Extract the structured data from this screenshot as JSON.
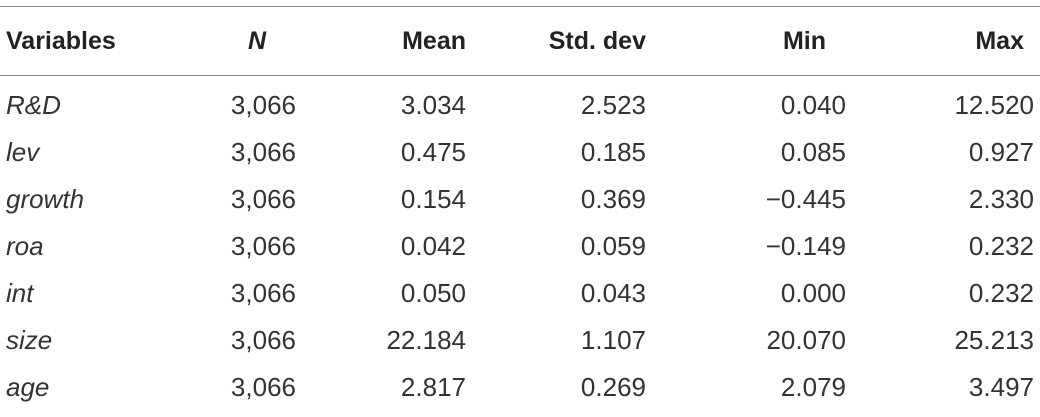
{
  "table": {
    "headers": [
      "Variables",
      "N",
      "Mean",
      "Std. dev",
      "Min",
      "Max"
    ],
    "rows": [
      {
        "variable": "R&D",
        "n": "3,066",
        "mean": "3.034",
        "sd": "2.523",
        "min": "0.040",
        "max": "12.520"
      },
      {
        "variable": "lev",
        "n": "3,066",
        "mean": "0.475",
        "sd": "0.185",
        "min": "0.085",
        "max": "0.927"
      },
      {
        "variable": "growth",
        "n": "3,066",
        "mean": "0.154",
        "sd": "0.369",
        "min": "−0.445",
        "max": "2.330"
      },
      {
        "variable": "roa",
        "n": "3,066",
        "mean": "0.042",
        "sd": "0.059",
        "min": "−0.149",
        "max": "0.232"
      },
      {
        "variable": "int",
        "n": "3,066",
        "mean": "0.050",
        "sd": "0.043",
        "min": "0.000",
        "max": "0.232"
      },
      {
        "variable": "size",
        "n": "3,066",
        "mean": "22.184",
        "sd": "1.107",
        "min": "20.070",
        "max": "25.213"
      },
      {
        "variable": "age",
        "n": "3,066",
        "mean": "2.817",
        "sd": "0.269",
        "min": "2.079",
        "max": "3.497"
      }
    ]
  }
}
